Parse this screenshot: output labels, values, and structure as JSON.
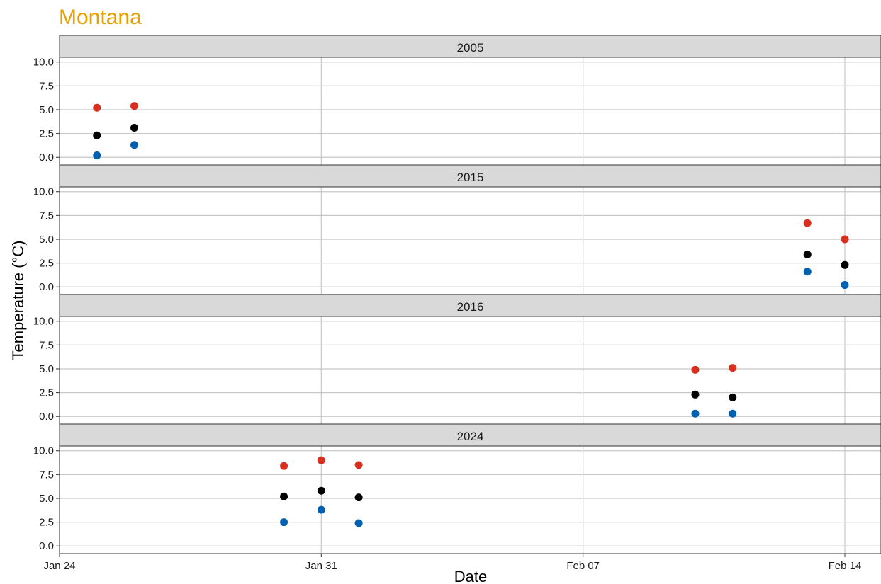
{
  "chart_data": {
    "type": "scatter",
    "title": "Montana",
    "xlabel": "Date",
    "ylabel": "Temperature (°C)",
    "xlim": [
      "2024-01-24",
      "2024-02-14"
    ],
    "ylim": [
      -0.8,
      10.5
    ],
    "x_ticks": [
      {
        "date": "2024-01-24",
        "label": "Jan 24"
      },
      {
        "date": "2024-01-31",
        "label": "Jan 31"
      },
      {
        "date": "2024-02-07",
        "label": "Feb 07"
      },
      {
        "date": "2024-02-14",
        "label": "Feb 14"
      }
    ],
    "y_ticks": [
      {
        "value": 0,
        "label": "0.0"
      },
      {
        "value": 2.5,
        "label": "2.5"
      },
      {
        "value": 5,
        "label": "5.0"
      },
      {
        "value": 7.5,
        "label": "7.5"
      },
      {
        "value": 10,
        "label": "10.0"
      }
    ],
    "grid": true,
    "legend": "none",
    "colors": {
      "title": "#E69F00",
      "high": "#D7301F",
      "mean": "#000000",
      "low": "#0060B0",
      "strip_fill": "#D9D9D9",
      "grid": "#C8C8C8"
    },
    "panels": [
      {
        "label": "2005",
        "series": [
          {
            "role": "high",
            "points": [
              {
                "x": "2024-01-25",
                "y": 5.2
              },
              {
                "x": "2024-01-26",
                "y": 5.4
              }
            ]
          },
          {
            "role": "mean",
            "points": [
              {
                "x": "2024-01-25",
                "y": 2.3
              },
              {
                "x": "2024-01-26",
                "y": 3.1
              }
            ]
          },
          {
            "role": "low",
            "points": [
              {
                "x": "2024-01-25",
                "y": 0.2
              },
              {
                "x": "2024-01-26",
                "y": 1.3
              }
            ]
          }
        ]
      },
      {
        "label": "2015",
        "series": [
          {
            "role": "high",
            "points": [
              {
                "x": "2024-02-13",
                "y": 6.7
              },
              {
                "x": "2024-02-14",
                "y": 5.0
              }
            ]
          },
          {
            "role": "mean",
            "points": [
              {
                "x": "2024-02-13",
                "y": 3.4
              },
              {
                "x": "2024-02-14",
                "y": 2.3
              }
            ]
          },
          {
            "role": "low",
            "points": [
              {
                "x": "2024-02-13",
                "y": 1.6
              },
              {
                "x": "2024-02-14",
                "y": 0.2
              }
            ]
          }
        ]
      },
      {
        "label": "2016",
        "series": [
          {
            "role": "high",
            "points": [
              {
                "x": "2024-02-10",
                "y": 4.9
              },
              {
                "x": "2024-02-11",
                "y": 5.1
              }
            ]
          },
          {
            "role": "mean",
            "points": [
              {
                "x": "2024-02-10",
                "y": 2.3
              },
              {
                "x": "2024-02-11",
                "y": 2.0
              }
            ]
          },
          {
            "role": "low",
            "points": [
              {
                "x": "2024-02-10",
                "y": 0.3
              },
              {
                "x": "2024-02-11",
                "y": 0.3
              }
            ]
          }
        ]
      },
      {
        "label": "2024",
        "series": [
          {
            "role": "high",
            "points": [
              {
                "x": "2024-01-30",
                "y": 8.4
              },
              {
                "x": "2024-01-31",
                "y": 9.0
              },
              {
                "x": "2024-02-01",
                "y": 8.5
              }
            ]
          },
          {
            "role": "mean",
            "points": [
              {
                "x": "2024-01-30",
                "y": 5.2
              },
              {
                "x": "2024-01-31",
                "y": 5.8
              },
              {
                "x": "2024-02-01",
                "y": 5.1
              }
            ]
          },
          {
            "role": "low",
            "points": [
              {
                "x": "2024-01-30",
                "y": 2.5
              },
              {
                "x": "2024-01-31",
                "y": 3.8
              },
              {
                "x": "2024-02-01",
                "y": 2.4
              }
            ]
          }
        ]
      }
    ]
  }
}
